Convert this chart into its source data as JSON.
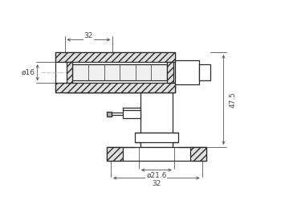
{
  "bg_color": "#ffffff",
  "line_color": "#2a2a2a",
  "dim_color": "#444444",
  "fig_width": 3.6,
  "fig_height": 2.7,
  "dpi": 100,
  "annotations": {
    "top_width": "32",
    "left_dia": "ø16",
    "right_height": "47.5",
    "bot_dia": "ø21.6",
    "bot_width": "32"
  }
}
